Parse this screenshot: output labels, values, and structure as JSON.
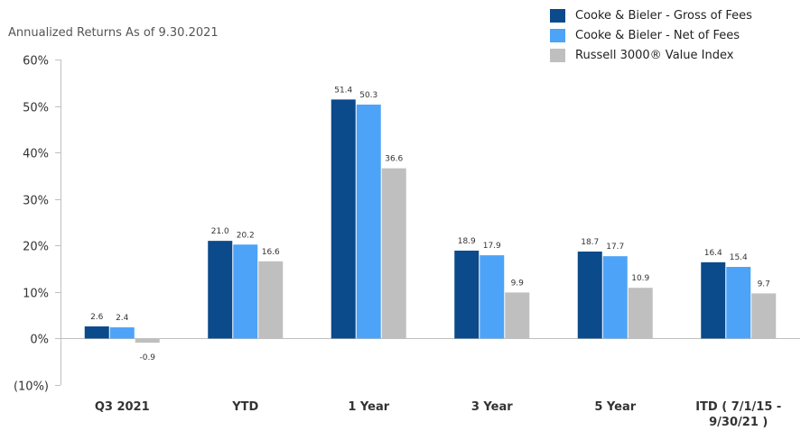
{
  "chart_data": {
    "type": "bar",
    "subtitle": "Annualized Returns As of 9.30.2021",
    "categories": [
      [
        "Q3 2021"
      ],
      [
        "YTD"
      ],
      [
        "1 Year"
      ],
      [
        "3 Year"
      ],
      [
        "5 Year"
      ],
      [
        "ITD ( 7/1/15 -",
        "9/30/21 )"
      ]
    ],
    "series": [
      {
        "name": "Cooke & Bieler - Gross of Fees",
        "color": "#0b4a8b",
        "values": [
          2.6,
          21.0,
          51.4,
          18.9,
          18.7,
          16.4
        ]
      },
      {
        "name": "Cooke & Bieler - Net of Fees",
        "color": "#4da3f7",
        "values": [
          2.4,
          20.2,
          50.3,
          17.9,
          17.7,
          15.4
        ]
      },
      {
        "name": "Russell 3000® Value Index",
        "color": "#bfbfbf",
        "values": [
          -0.9,
          16.6,
          36.6,
          9.9,
          10.9,
          9.7
        ]
      }
    ],
    "data_labels": [
      [
        "2.6",
        "21.0",
        "51.4",
        "18.9",
        "18.7",
        "16.4"
      ],
      [
        "2.4",
        "20.2",
        "50.3",
        "17.9",
        "17.7",
        "15.4"
      ],
      [
        "-0.9",
        "16.6",
        "36.6",
        "9.9",
        "10.9",
        "9.7"
      ]
    ],
    "y_ticks": [
      -10,
      0,
      10,
      20,
      30,
      40,
      50,
      60
    ],
    "y_tick_labels": [
      "(10%)",
      "0%",
      "10%",
      "20%",
      "30%",
      "40%",
      "50%",
      "60%"
    ],
    "ylim": [
      -10,
      60
    ],
    "grid": false,
    "legend_position": "top-right"
  }
}
